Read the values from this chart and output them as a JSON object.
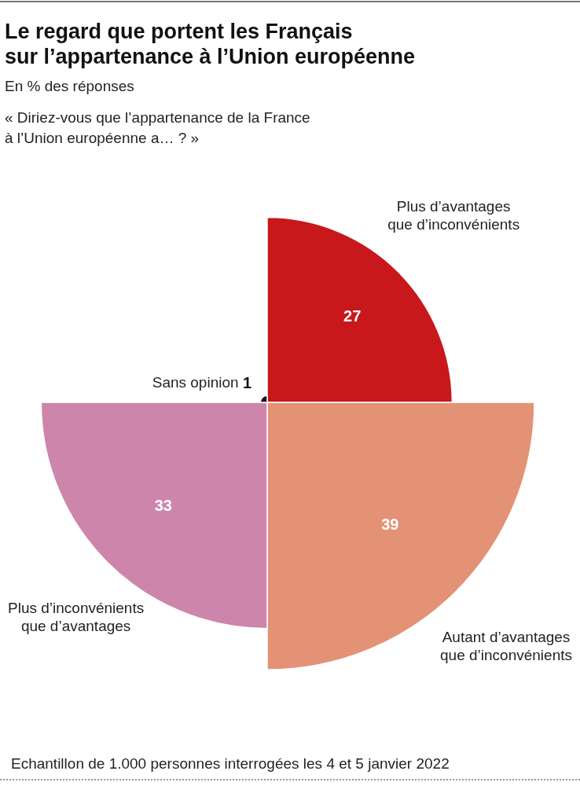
{
  "chart_data": {
    "type": "other",
    "title": "Le regard que portent les Français\nsur l’appartenance à l’Union européenne",
    "subtitle": "En % des réponses",
    "categories": [
      "Plus d’avantages que d’inconvénients",
      "Autant d’avantages que d’inconvénients",
      "Plus d’inconvénients que d’avantages",
      "Sans opinion"
    ],
    "values": [
      27,
      39,
      33,
      1
    ],
    "colors": [
      "#c8181c",
      "#e39276",
      "#cd85ac",
      "#1a1a1a"
    ],
    "data_labels": true,
    "annotations": [
      "« Diriez-vous que l’appartenance de la France\nà l’Union européenne a… ? »",
      "Echantillon de 1.000 personnes interrogées les 4 et 5 janvier 2022"
    ]
  }
}
